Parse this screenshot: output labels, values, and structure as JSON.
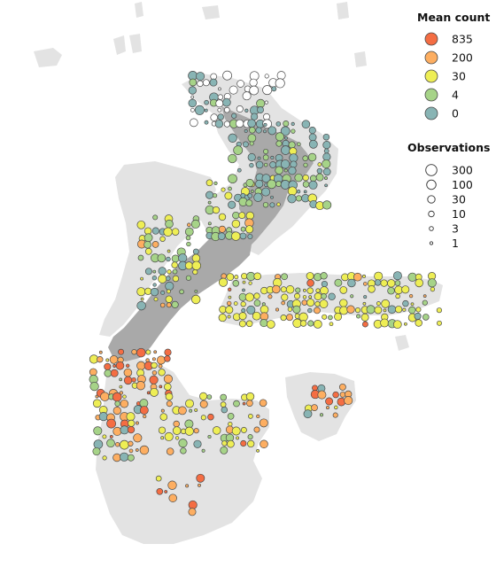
{
  "colors": {
    "sea": "#ffffff",
    "shelf": "#e3e3e3",
    "land": "#a9a9a9",
    "marker_stroke": "#4a4a4a"
  },
  "legend_count": {
    "title": "Mean count",
    "items": [
      {
        "label": "835",
        "color": "#f46d43"
      },
      {
        "label": "200",
        "color": "#fdae61"
      },
      {
        "label": "30",
        "color": "#eeee55"
      },
      {
        "label": "4",
        "color": "#a6d388"
      },
      {
        "label": "0",
        "color": "#88b4b4"
      }
    ]
  },
  "legend_obs": {
    "title": "Observations",
    "items": [
      {
        "label": "300",
        "value": 300
      },
      {
        "label": "100",
        "value": 100
      },
      {
        "label": "30",
        "value": 30
      },
      {
        "label": "10",
        "value": 10
      },
      {
        "label": "3",
        "value": 3
      },
      {
        "label": "1",
        "value": 1
      }
    ]
  }
}
